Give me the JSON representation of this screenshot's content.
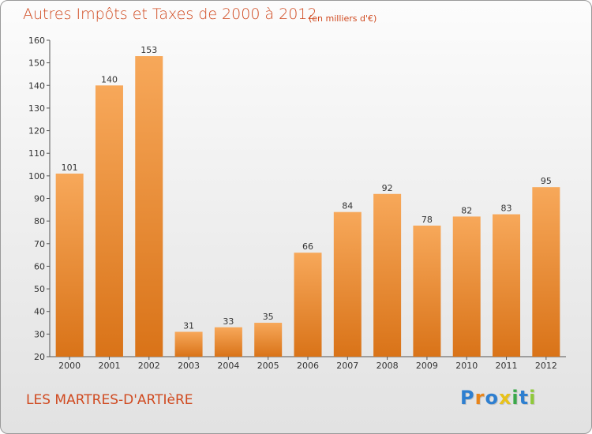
{
  "title": "Autres Impôts et Taxes de 2000 à 2012",
  "subtitle": "(en milliers d'€)",
  "commune": "LES MARTRES-D'ARTIèRE",
  "logo": {
    "letters": [
      "P",
      "r",
      "o",
      "x",
      "i",
      "t",
      "i"
    ],
    "colors": [
      "#2e7fd0",
      "#e8851a",
      "#2e7fd0",
      "#e8c21a",
      "#3aa84a",
      "#2e7fd0",
      "#8fc93a"
    ]
  },
  "colors": {
    "bar_light": "#f7a85a",
    "bar_dark": "#d97318",
    "title": "#d04a20"
  },
  "chart_data": {
    "type": "bar",
    "categories": [
      "2000",
      "2001",
      "2002",
      "2003",
      "2004",
      "2005",
      "2006",
      "2007",
      "2008",
      "2009",
      "2010",
      "2011",
      "2012"
    ],
    "values": [
      101,
      140,
      153,
      31,
      33,
      35,
      66,
      84,
      92,
      78,
      82,
      83,
      95
    ],
    "ylim": [
      20,
      160
    ],
    "yticks": [
      20,
      30,
      40,
      50,
      60,
      70,
      80,
      90,
      100,
      110,
      120,
      130,
      140,
      150,
      160
    ],
    "grid": false,
    "data_labels": true
  }
}
